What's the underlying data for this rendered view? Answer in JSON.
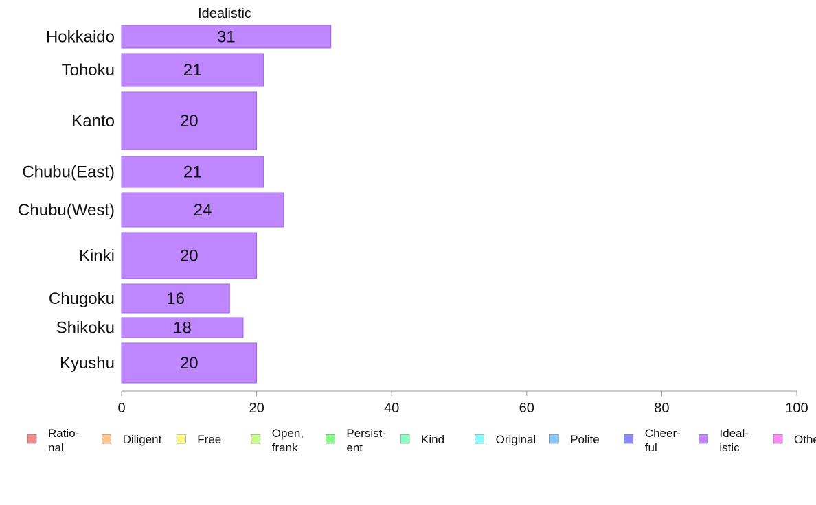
{
  "chart_data": {
    "type": "bar",
    "orientation": "horizontal",
    "title": "Idealistic",
    "categories": [
      "Hokkaido",
      "Tohoku",
      "Kanto",
      "Chubu(East)",
      "Chubu(West)",
      "Kinki",
      "Chugoku",
      "Shikoku",
      "Kyushu"
    ],
    "values": [
      31,
      21,
      20,
      21,
      24,
      20,
      16,
      18,
      20
    ],
    "data_labels": [
      "31",
      "21",
      "20",
      "21",
      "24",
      "20",
      "16",
      "18",
      "20"
    ],
    "xlim": [
      0,
      100
    ],
    "xticks": [
      0,
      20,
      40,
      60,
      80,
      100
    ],
    "xtick_labels": [
      "0",
      "20",
      "40",
      "60",
      "80",
      "100"
    ],
    "bar_color": "#bf87ff",
    "bar_edge_color": "#9b6ad6",
    "grid": false,
    "legend_position": "bottom",
    "legend": [
      {
        "label": [
          "Ratio-",
          "nal"
        ],
        "color": "#f08a8a"
      },
      {
        "label": [
          "Diligent"
        ],
        "color": "#ffc78a"
      },
      {
        "label": [
          "Free"
        ],
        "color": "#fbfb8a"
      },
      {
        "label": [
          "Open,",
          "frank"
        ],
        "color": "#c7fb8a"
      },
      {
        "label": [
          "Persist-",
          "ent"
        ],
        "color": "#8afb8a"
      },
      {
        "label": [
          "Kind"
        ],
        "color": "#8afbc7"
      },
      {
        "label": [
          "Original"
        ],
        "color": "#8afbfb"
      },
      {
        "label": [
          "Polite"
        ],
        "color": "#8ac7fb"
      },
      {
        "label": [
          "Cheer-",
          "ful"
        ],
        "color": "#8a8afb"
      },
      {
        "label": [
          "Ideal-",
          "istic"
        ],
        "color": "#bf87ff"
      },
      {
        "label": [
          "Other"
        ],
        "color": "#fb8afb"
      }
    ]
  }
}
